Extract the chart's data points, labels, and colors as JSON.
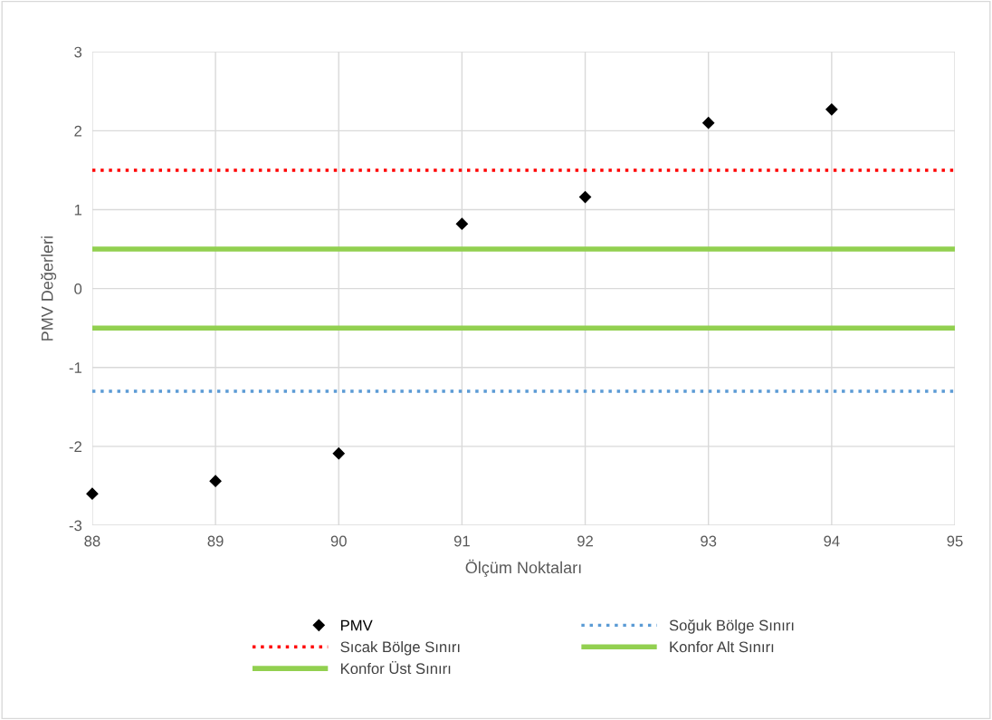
{
  "chart_data": {
    "type": "scatter",
    "xlabel": "Ölçüm Noktaları",
    "ylabel": "PMV Değerleri",
    "x": [
      88,
      89,
      90,
      91,
      92,
      93,
      94
    ],
    "series": [
      {
        "name": "PMV",
        "color": "#000000",
        "values": [
          -2.6,
          -2.44,
          -2.09,
          0.82,
          1.16,
          2.1,
          2.27
        ]
      }
    ],
    "marker": "diamond",
    "xlim": [
      88,
      95
    ],
    "xticks": [
      88,
      89,
      90,
      91,
      92,
      93,
      94,
      95
    ],
    "ylim": [
      -3,
      3
    ],
    "yticks": [
      -3,
      -2,
      -1,
      0,
      1,
      2,
      3
    ],
    "ref_lines": [
      {
        "axis": "y",
        "value": -1.3,
        "label": "Soğuk Bölge Sınırı",
        "color": "#5b9bd5",
        "line_style": "dotted"
      },
      {
        "axis": "y",
        "value": 1.5,
        "label": "Sıcak Bölge Sınırı",
        "color": "#ff0000",
        "line_style": "dotted"
      },
      {
        "axis": "y",
        "value": -0.5,
        "label": "Konfor Alt Sınırı",
        "color": "#92d050",
        "line_style": "solid"
      },
      {
        "axis": "y",
        "value": 0.5,
        "label": "Konfor Üst Sınırı",
        "color": "#92d050",
        "line_style": "solid"
      }
    ],
    "grid": true,
    "legend": "bottom"
  }
}
